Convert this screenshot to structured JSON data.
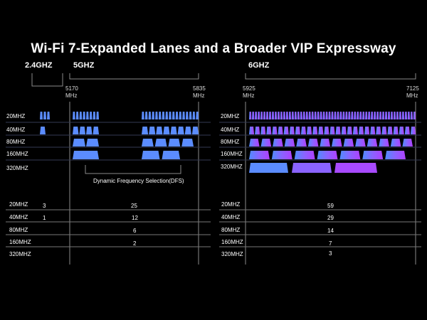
{
  "title": "Wi-Fi 7-Expanded Lanes and a Broader VIP Expressway",
  "bands": {
    "b24": "2.4GHZ",
    "b5": "5GHZ",
    "b6": "6GHZ"
  },
  "freqs": {
    "f5_start": "5170\nMHz",
    "f5_end": "5835\nMHz",
    "f6_start": "5925\nMHz",
    "f6_end": "7125\nMHz"
  },
  "widths": [
    "20MHZ",
    "40MHZ",
    "80MHZ",
    "160MHZ",
    "320MHZ"
  ],
  "dfs_label": "Dynamic Frequency Selection(DFS)",
  "channel_counts": {
    "b24": [
      "3",
      "1",
      "",
      "",
      ""
    ],
    "b5": [
      "25",
      "12",
      "6",
      "2",
      ""
    ],
    "b6": [
      "59",
      "29",
      "14",
      "7",
      "3"
    ]
  },
  "colors": {
    "background": "#000000",
    "blue": "#5b8cff",
    "purple": "#a04dff",
    "line": "#8a8a8a"
  }
}
